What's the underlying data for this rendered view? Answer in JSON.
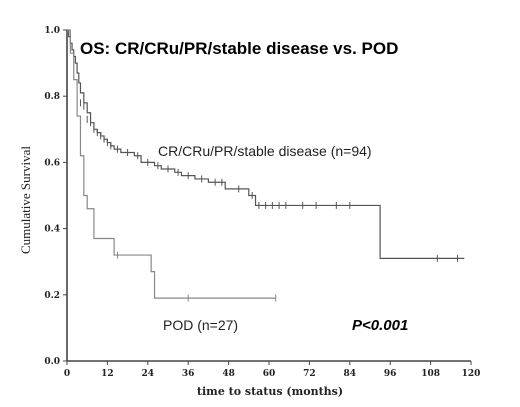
{
  "chart_data": {
    "type": "line",
    "subtype": "kaplan-meier",
    "title": "OS: CR/CRu/PR/stable disease vs. POD",
    "xlabel": "time to status (months)",
    "ylabel": "Cumulative Survival",
    "xlim": [
      0,
      120
    ],
    "ylim": [
      0,
      1.0
    ],
    "x_ticks": [
      "0",
      "12",
      "24",
      "36",
      "48",
      "60",
      "72",
      "84",
      "96",
      "108",
      "120"
    ],
    "y_ticks": [
      "0.0",
      "0.2",
      "0.4",
      "0.6",
      "0.8",
      "1.0"
    ],
    "x_tick_values": [
      0,
      12,
      24,
      36,
      48,
      60,
      72,
      84,
      96,
      108,
      120
    ],
    "y_tick_values": [
      0,
      0.2,
      0.4,
      0.6,
      0.8,
      1.0
    ],
    "grid": false,
    "annotation": "P<0.001",
    "series": [
      {
        "name": "CR/CRu/PR/stable disease (n=94)",
        "color": "#555555",
        "steps": [
          [
            0,
            1.0
          ],
          [
            0.5,
            0.98
          ],
          [
            1,
            0.96
          ],
          [
            1.5,
            0.94
          ],
          [
            2,
            0.92
          ],
          [
            2.5,
            0.9
          ],
          [
            3,
            0.87
          ],
          [
            3.5,
            0.84
          ],
          [
            4,
            0.81
          ],
          [
            5,
            0.78
          ],
          [
            6,
            0.75
          ],
          [
            7,
            0.72
          ],
          [
            8,
            0.7
          ],
          [
            9,
            0.69
          ],
          [
            10,
            0.68
          ],
          [
            11,
            0.67
          ],
          [
            12,
            0.66
          ],
          [
            13,
            0.65
          ],
          [
            14,
            0.64
          ],
          [
            16,
            0.63
          ],
          [
            20,
            0.62
          ],
          [
            22,
            0.6
          ],
          [
            26,
            0.59
          ],
          [
            28,
            0.58
          ],
          [
            32,
            0.57
          ],
          [
            34,
            0.56
          ],
          [
            38,
            0.55
          ],
          [
            42,
            0.54
          ],
          [
            47,
            0.52
          ],
          [
            54,
            0.5
          ],
          [
            56,
            0.47
          ],
          [
            93,
            0.31
          ],
          [
            118,
            0.31
          ]
        ],
        "censored": [
          [
            4,
            0.78
          ],
          [
            5,
            0.77
          ],
          [
            6,
            0.73
          ],
          [
            7,
            0.72
          ],
          [
            8,
            0.7
          ],
          [
            9,
            0.69
          ],
          [
            10,
            0.68
          ],
          [
            11,
            0.67
          ],
          [
            12,
            0.66
          ],
          [
            13,
            0.65
          ],
          [
            15,
            0.64
          ],
          [
            18,
            0.63
          ],
          [
            21,
            0.62
          ],
          [
            24,
            0.6
          ],
          [
            27,
            0.59
          ],
          [
            30,
            0.58
          ],
          [
            33,
            0.57
          ],
          [
            36,
            0.56
          ],
          [
            40,
            0.55
          ],
          [
            44,
            0.54
          ],
          [
            46,
            0.54
          ],
          [
            51,
            0.52
          ],
          [
            55,
            0.5
          ],
          [
            57,
            0.47
          ],
          [
            59,
            0.47
          ],
          [
            61,
            0.47
          ],
          [
            63,
            0.47
          ],
          [
            65,
            0.47
          ],
          [
            70,
            0.47
          ],
          [
            74,
            0.47
          ],
          [
            80,
            0.47
          ],
          [
            84,
            0.47
          ],
          [
            110,
            0.31
          ],
          [
            116,
            0.31
          ]
        ]
      },
      {
        "name": "POD (n=27)",
        "color": "#888888",
        "steps": [
          [
            0,
            1.0
          ],
          [
            1,
            0.93
          ],
          [
            2,
            0.85
          ],
          [
            3,
            0.74
          ],
          [
            4,
            0.62
          ],
          [
            5,
            0.5
          ],
          [
            6,
            0.46
          ],
          [
            8,
            0.37
          ],
          [
            14,
            0.32
          ],
          [
            25,
            0.27
          ],
          [
            26,
            0.19
          ],
          [
            62,
            0.19
          ]
        ],
        "censored": [
          [
            15,
            0.32
          ],
          [
            36,
            0.19
          ],
          [
            62,
            0.19
          ]
        ]
      }
    ]
  }
}
